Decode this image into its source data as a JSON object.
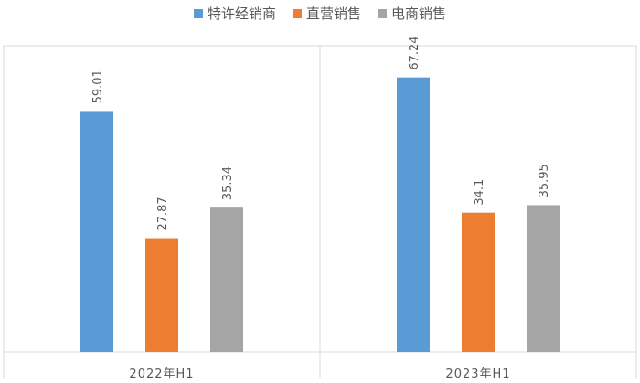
{
  "chart_data": {
    "type": "bar",
    "title": "",
    "xlabel": "",
    "ylabel": "",
    "ylim": [
      0,
      75
    ],
    "grid": false,
    "legend_position": "top",
    "categories": [
      "2022年H1",
      "2023年H1"
    ],
    "series": [
      {
        "name": "特许经销商",
        "color": "#5B9BD5",
        "values": [
          59.01,
          67.24
        ],
        "labels": [
          "59.01",
          "67.24"
        ]
      },
      {
        "name": "直营销售",
        "color": "#ED7D31",
        "values": [
          27.87,
          34.1
        ],
        "labels": [
          "27.87",
          "34.1"
        ]
      },
      {
        "name": "电商销售",
        "color": "#A5A5A5",
        "values": [
          35.34,
          35.95
        ],
        "labels": [
          "35.34",
          "35.95"
        ]
      }
    ]
  }
}
